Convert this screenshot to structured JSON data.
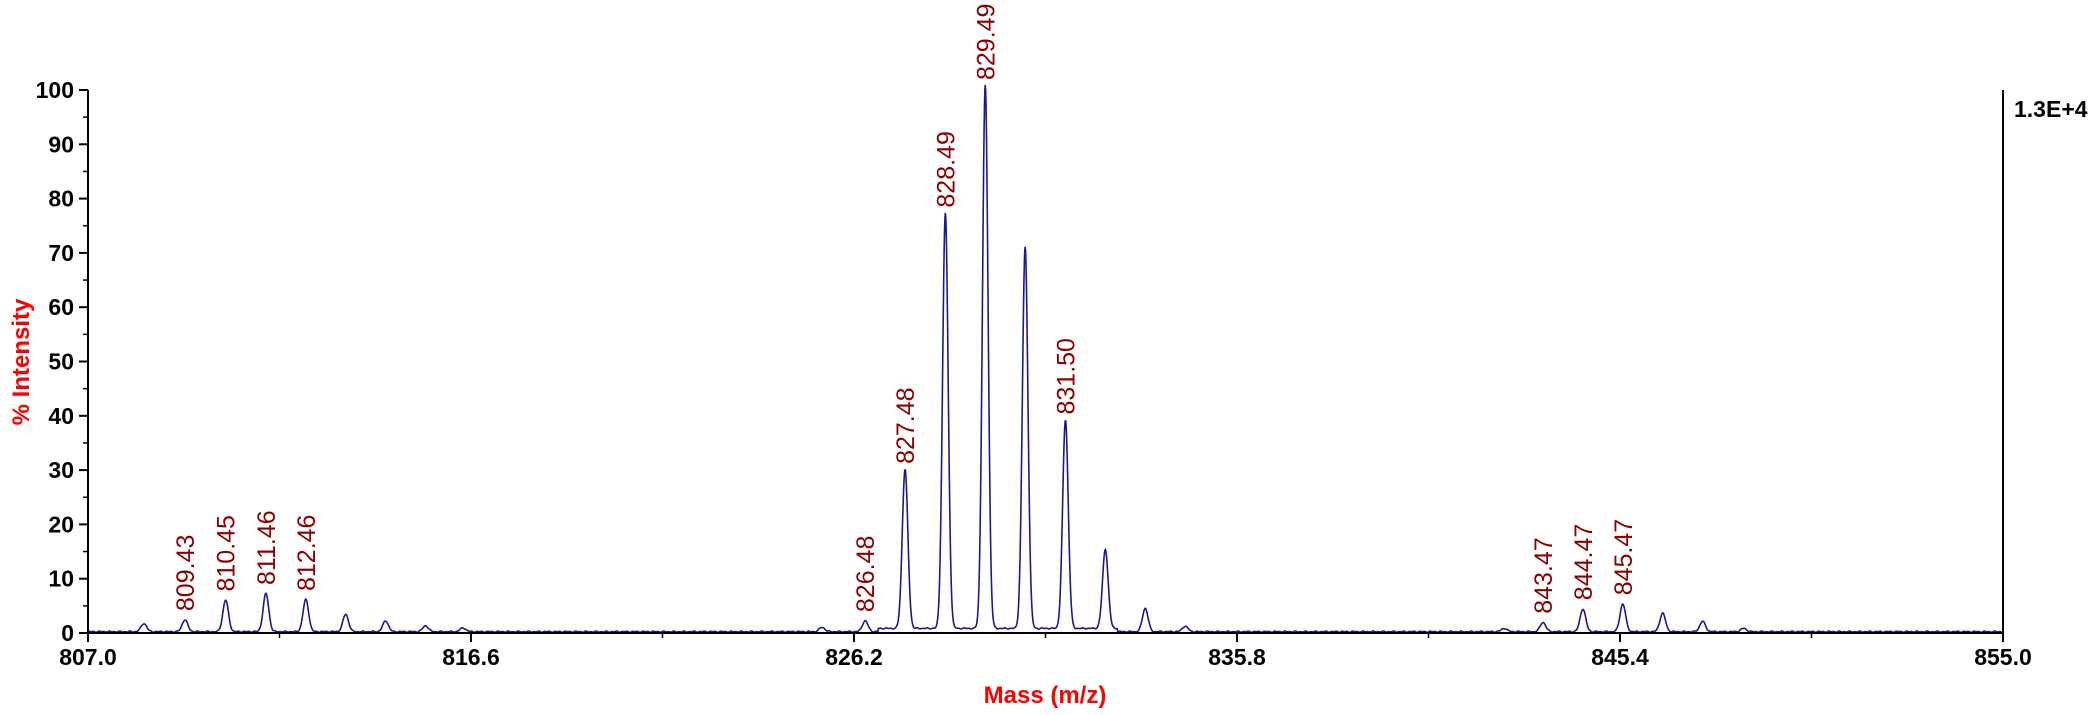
{
  "chart_data": {
    "type": "line",
    "title": "",
    "xlabel": "Mass (m/z)",
    "ylabel": "% Intensity",
    "xlim": [
      807.0,
      855.0
    ],
    "ylim": [
      0,
      100
    ],
    "x_ticks": [
      "807.0",
      "816.6",
      "826.2",
      "835.8",
      "845.4",
      "855.0"
    ],
    "y_ticks": [
      "0",
      "10",
      "20",
      "30",
      "40",
      "50",
      "60",
      "70",
      "80",
      "90",
      "100"
    ],
    "max_intensity_label": "1.3E+4",
    "grid": false,
    "line_color": "#1a1a8c",
    "label_color": "#8b0000",
    "axis_title_color": "#ff0000",
    "peaks": [
      {
        "x": 808.4,
        "y": 1.5
      },
      {
        "x": 809.43,
        "y": 2.2,
        "label": "809.43"
      },
      {
        "x": 810.45,
        "y": 5.8,
        "label": "810.45"
      },
      {
        "x": 811.46,
        "y": 7.0,
        "label": "811.46"
      },
      {
        "x": 812.46,
        "y": 5.9,
        "label": "812.46"
      },
      {
        "x": 813.46,
        "y": 3.2
      },
      {
        "x": 814.46,
        "y": 2.0
      },
      {
        "x": 815.46,
        "y": 1.1
      },
      {
        "x": 816.4,
        "y": 0.7
      },
      {
        "x": 825.4,
        "y": 0.8
      },
      {
        "x": 826.48,
        "y": 2.0,
        "label": "826.48"
      },
      {
        "x": 827.48,
        "y": 29.3,
        "label": "827.48"
      },
      {
        "x": 828.49,
        "y": 76.5,
        "label": "828.49"
      },
      {
        "x": 829.49,
        "y": 100,
        "label": "829.49"
      },
      {
        "x": 830.49,
        "y": 70.2
      },
      {
        "x": 831.5,
        "y": 38.4,
        "label": "831.50"
      },
      {
        "x": 832.5,
        "y": 14.6
      },
      {
        "x": 833.5,
        "y": 4.3
      },
      {
        "x": 834.5,
        "y": 1.0
      },
      {
        "x": 842.5,
        "y": 0.6
      },
      {
        "x": 843.47,
        "y": 1.7,
        "label": "843.47"
      },
      {
        "x": 844.47,
        "y": 4.2,
        "label": "844.47"
      },
      {
        "x": 845.47,
        "y": 5.1,
        "label": "845.47"
      },
      {
        "x": 846.47,
        "y": 3.4
      },
      {
        "x": 847.47,
        "y": 1.9
      },
      {
        "x": 848.5,
        "y": 0.6
      }
    ]
  }
}
